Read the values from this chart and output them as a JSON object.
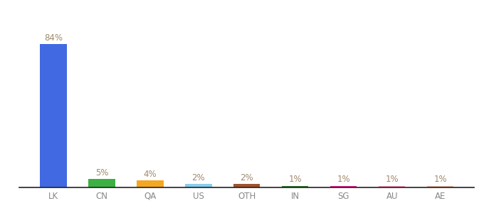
{
  "categories": [
    "LK",
    "CN",
    "QA",
    "US",
    "OTH",
    "IN",
    "SG",
    "AU",
    "AE"
  ],
  "values": [
    84,
    5,
    4,
    2,
    2,
    1,
    1,
    1,
    1
  ],
  "bar_colors": [
    "#4169e1",
    "#3cb043",
    "#f5a623",
    "#87ceeb",
    "#a0522d",
    "#2d7a2d",
    "#e91e8c",
    "#f48fb1",
    "#e8b4a0"
  ],
  "labels": [
    "84%",
    "5%",
    "4%",
    "2%",
    "2%",
    "1%",
    "1%",
    "1%",
    "1%"
  ],
  "label_color": "#a0896b",
  "background_color": "#ffffff",
  "ylim": [
    0,
    100
  ],
  "tick_fontsize": 8.5,
  "label_fontsize": 8.5,
  "tick_color": "#888888"
}
